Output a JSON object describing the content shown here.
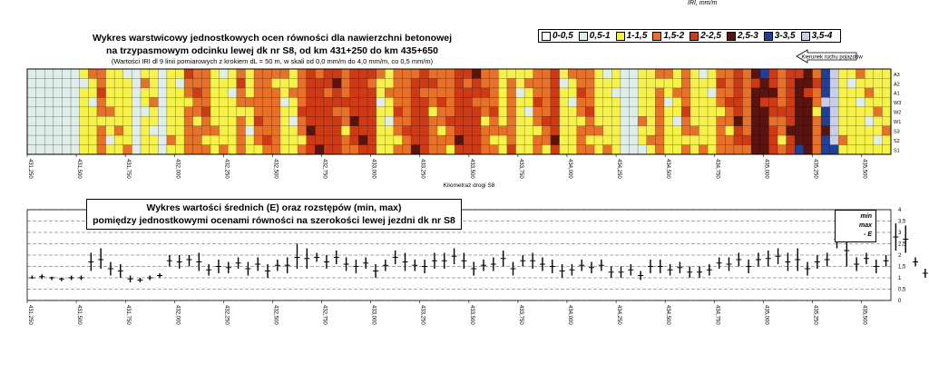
{
  "header": {
    "unit": "IRI, mm/m",
    "title_line1": "Wykres warstwicowy jednostkowych ocen równości dla nawierzchni betonowej",
    "title_line2": "na trzypasmowym odcinku lewej dk nr S8, od km 431+250 do km 435+650",
    "subtitle": "(Wartości IRI dl 9 linii pomiarowych z krokiem dL = 50 m, w skali od 0,0 mm/m do 4,0 mm/m, co 0,5 mm/m)",
    "direction_label": "Kierunek ruchu pojazdów"
  },
  "legend": [
    {
      "label": "0-0,5",
      "color": "#ffffff"
    },
    {
      "label": "0,5-1",
      "color": "#dfeee8"
    },
    {
      "label": "1-1,5",
      "color": "#f7f24a"
    },
    {
      "label": "1,5-2",
      "color": "#e8712a"
    },
    {
      "label": "2-2,5",
      "color": "#cf3a16"
    },
    {
      "label": "2,5-3",
      "color": "#5a1410"
    },
    {
      "label": "3-3,5",
      "color": "#1f3f98"
    },
    {
      "label": "3,5-4",
      "color": "#c8cde8"
    }
  ],
  "chart_data": [
    {
      "type": "heatmap",
      "title": "Wykres warstwicowy jednostkowych ocen równości dla nawierzchni betonowej na trzypasmowym odcinku lewej dk nr S8, od km 431+250 do km 435+650",
      "xlabel": "Kilometraż drogi S8",
      "rows": [
        "A3",
        "A2",
        "A1",
        "W3",
        "W2",
        "W1",
        "S3",
        "S2",
        "S1"
      ],
      "x_ticks": [
        "431,250",
        "431,500",
        "431,750",
        "432,000",
        "432,250",
        "432,500",
        "432,750",
        "433,000",
        "433,250",
        "433,500",
        "433,750",
        "434,000",
        "434,250",
        "434,500",
        "434,750",
        "435,000",
        "435,250",
        "435,500"
      ],
      "xlim": [
        431.25,
        435.65
      ],
      "column_classes": [
        1,
        1,
        1,
        1,
        1,
        1,
        2,
        2,
        3,
        2,
        2,
        2,
        1,
        2,
        2,
        1,
        2,
        2,
        3,
        3,
        3,
        2,
        2,
        2,
        3,
        2,
        3,
        3,
        3,
        2,
        2,
        3,
        4,
        4,
        4,
        4,
        3,
        4,
        4,
        4,
        2,
        2,
        3,
        3,
        4,
        4,
        3,
        3,
        3,
        4,
        4,
        4,
        3,
        3,
        2,
        3,
        2,
        2,
        3,
        3,
        4,
        2,
        2,
        3,
        3,
        2,
        2,
        2,
        1,
        1,
        2,
        2,
        3,
        2,
        2,
        3,
        2,
        2,
        2,
        3,
        3,
        4,
        3,
        5,
        5,
        4,
        3,
        4,
        5,
        5,
        3,
        6,
        7,
        2,
        2,
        2,
        2,
        2,
        2
      ]
    },
    {
      "type": "scatter",
      "title": "Wykres wartości średnich (E) oraz rozstępów (min, max) pomiędzy jednostkowymi ocenami równości na szerokości lewej jezdni dk nr S8",
      "ylim": [
        0,
        4
      ],
      "y_ticks": [
        "0",
        "0,5",
        "1",
        "1,5",
        "2",
        "2,5",
        "3",
        "3,5",
        "4"
      ],
      "x_ticks": [
        "431,250",
        "431,500",
        "431,750",
        "432,000",
        "432,250",
        "432,500",
        "432,750",
        "433,000",
        "433,250",
        "433,500",
        "433,750",
        "434,000",
        "434,250",
        "434,500",
        "434,750",
        "435,000",
        "435,250",
        "435,500"
      ],
      "legend": [
        "min",
        "max",
        "- E"
      ],
      "x_start": 431.25,
      "x_step": 0.05,
      "series": [
        {
          "name": "min",
          "values": [
            0.95,
            0.95,
            0.9,
            0.85,
            0.9,
            0.9,
            1.3,
            1.4,
            1.1,
            1.0,
            0.8,
            0.8,
            0.9,
            1.0,
            1.5,
            1.4,
            1.5,
            1.3,
            1.1,
            1.2,
            1.2,
            1.4,
            1.1,
            1.3,
            1.0,
            1.3,
            1.2,
            1.4,
            1.4,
            1.7,
            1.4,
            1.6,
            1.3,
            1.2,
            1.4,
            1.0,
            1.3,
            1.6,
            1.3,
            1.3,
            1.2,
            1.4,
            1.4,
            1.6,
            1.4,
            1.1,
            1.3,
            1.3,
            1.5,
            1.1,
            1.5,
            1.4,
            1.3,
            1.2,
            1.0,
            1.1,
            1.3,
            1.2,
            1.3,
            1.0,
            1.0,
            1.1,
            0.9,
            1.2,
            1.2,
            1.1,
            1.2,
            1.0,
            1.0,
            1.1,
            1.4,
            1.3,
            1.5,
            1.2,
            1.5,
            1.5,
            1.6,
            1.3,
            1.3,
            1.1,
            1.4,
            1.5,
            2.3,
            1.5,
            1.3,
            1.6,
            1.2,
            1.5,
            2.2,
            2.1,
            1.5,
            1.0,
            1.1,
            1.4,
            1.1,
            1.1,
            1.1,
            1.1,
            1.1
          ]
        },
        {
          "name": "max",
          "values": [
            1.1,
            1.15,
            1.05,
            1.0,
            1.1,
            1.1,
            2.1,
            2.3,
            1.7,
            1.6,
            1.1,
            1.0,
            1.1,
            1.2,
            2.0,
            2.0,
            2.0,
            2.1,
            1.6,
            1.8,
            1.7,
            1.9,
            1.7,
            1.9,
            1.6,
            1.8,
            1.9,
            2.5,
            2.3,
            2.1,
            2.0,
            2.2,
            1.9,
            1.8,
            1.9,
            1.6,
            1.8,
            2.2,
            2.1,
            1.8,
            1.8,
            2.1,
            2.1,
            2.3,
            2.1,
            1.7,
            1.8,
            1.9,
            2.2,
            1.7,
            2.0,
            2.1,
            1.9,
            1.8,
            1.6,
            1.6,
            1.8,
            1.7,
            1.8,
            1.5,
            1.5,
            1.6,
            1.3,
            1.8,
            1.8,
            1.6,
            1.7,
            1.5,
            1.5,
            1.6,
            1.9,
            1.9,
            2.1,
            1.8,
            2.1,
            2.2,
            2.3,
            2.1,
            2.3,
            1.7,
            2.0,
            2.1,
            3.0,
            2.8,
            1.9,
            2.1,
            1.8,
            2.0,
            3.4,
            3.3,
            1.9,
            1.4,
            1.6,
            1.9,
            1.6,
            1.6,
            1.6,
            1.5,
            1.6
          ]
        },
        {
          "name": "E",
          "values": [
            1.0,
            1.05,
            1.0,
            0.95,
            1.0,
            1.0,
            1.7,
            1.8,
            1.4,
            1.3,
            0.95,
            0.9,
            1.0,
            1.1,
            1.75,
            1.7,
            1.8,
            1.7,
            1.35,
            1.5,
            1.45,
            1.65,
            1.4,
            1.6,
            1.3,
            1.55,
            1.55,
            1.9,
            1.85,
            1.9,
            1.7,
            1.9,
            1.6,
            1.5,
            1.65,
            1.3,
            1.55,
            1.9,
            1.7,
            1.55,
            1.5,
            1.75,
            1.75,
            1.95,
            1.75,
            1.4,
            1.55,
            1.6,
            1.85,
            1.4,
            1.75,
            1.75,
            1.6,
            1.5,
            1.3,
            1.35,
            1.55,
            1.45,
            1.55,
            1.25,
            1.25,
            1.35,
            1.1,
            1.5,
            1.5,
            1.35,
            1.45,
            1.25,
            1.25,
            1.35,
            1.65,
            1.6,
            1.8,
            1.5,
            1.8,
            1.85,
            1.95,
            1.7,
            1.8,
            1.4,
            1.7,
            1.8,
            2.7,
            2.2,
            1.6,
            1.85,
            1.5,
            1.75,
            2.8,
            2.7,
            1.7,
            1.2,
            1.35,
            1.65,
            1.35,
            1.35,
            1.35,
            1.3,
            1.35
          ]
        }
      ]
    }
  ],
  "chart2_title_line1": "Wykres wartości średnich (E) oraz rozstępów (min, max)",
  "chart2_title_line2": "pomiędzy jednostkowymi ocenami równości na szerokości lewej jezdni dk nr S8",
  "chart2_legend": [
    "min",
    "max",
    "- E"
  ]
}
